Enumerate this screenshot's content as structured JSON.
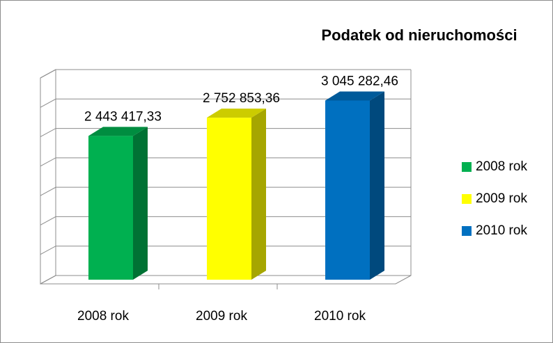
{
  "chart_data": {
    "type": "bar3d",
    "title": "Podatek od nieruchomości",
    "categories": [
      "2008 rok",
      "2009 rok",
      "2010 rok"
    ],
    "values": [
      2443417.33,
      2752853.36,
      3045282.46
    ],
    "value_labels": [
      "2 443 417,33",
      "2 752 853,36",
      "3 045 282,46"
    ],
    "colors": [
      "#00b050",
      "#ffff00",
      "#0070c0"
    ],
    "ylim": [
      0,
      3500000
    ],
    "yticks": [
      0,
      500000,
      1000000,
      1500000,
      2000000,
      2500000,
      3000000,
      3500000
    ],
    "grid": true,
    "legend": "right"
  }
}
